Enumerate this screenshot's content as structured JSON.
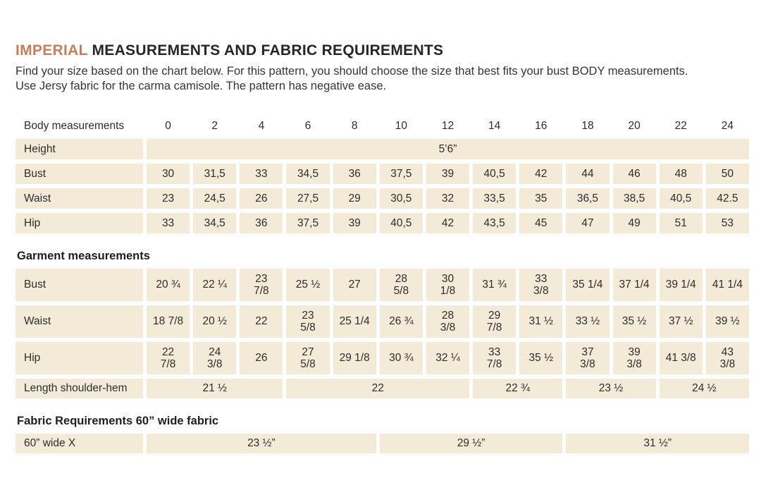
{
  "title": {
    "accent": "IMPERIAL",
    "rest": " MEASUREMENTS AND FABRIC REQUIREMENTS"
  },
  "subtitle": {
    "line1": "Find your size based on the chart below. For this pattern, you should choose the size that best fits your bust BODY measurements.",
    "line2": "Use Jersy fabric for the carma camisole. The pattern has negative ease."
  },
  "colors": {
    "accent": "#c67f5b",
    "cell_background": "#f3ead8",
    "text": "#2d2d2d"
  },
  "table": {
    "header_label": "Body measurements",
    "sizes": [
      "0",
      "2",
      "4",
      "6",
      "8",
      "10",
      "12",
      "14",
      "16",
      "18",
      "20",
      "22",
      "24"
    ],
    "height": {
      "label": "Height",
      "value": "5’6”"
    },
    "body_rows": [
      {
        "label": "Bust",
        "values": [
          "30",
          "31,5",
          "33",
          "34,5",
          "36",
          "37,5",
          "39",
          "40,5",
          "42",
          "44",
          "46",
          "48",
          "50"
        ]
      },
      {
        "label": "Waist",
        "values": [
          "23",
          "24,5",
          "26",
          "27,5",
          "29",
          "30,5",
          "32",
          "33,5",
          "35",
          "36,5",
          "38,5",
          "40,5",
          "42.5"
        ]
      },
      {
        "label": "Hip",
        "values": [
          "33",
          "34,5",
          "36",
          "37,5",
          "39",
          "40,5",
          "42",
          "43,5",
          "45",
          "47",
          "49",
          "51",
          "53"
        ]
      }
    ],
    "garment_section_label": "Garment measurements",
    "garment_rows": [
      {
        "label": "Bust",
        "values": [
          "20 ¾",
          "22 ¼",
          "23\n7/8",
          "25 ½",
          "27",
          "28\n5/8",
          "30\n1/8",
          "31 ¾",
          "33\n3/8",
          "35 1/4",
          "37 1/4",
          "39 1/4",
          "41 1/4"
        ]
      },
      {
        "label": "Waist",
        "values": [
          "18 7/8",
          "20 ½",
          "22",
          "23\n5/8",
          "25 1/4",
          "26 ¾",
          "28\n3/8",
          "29\n7/8",
          "31 ½",
          "33 ½",
          "35 ½",
          "37 ½",
          "39 ½"
        ]
      },
      {
        "label": "Hip",
        "values": [
          "22\n7/8",
          "24\n3/8",
          "26",
          "27\n5/8",
          "29 1/8",
          "30 ¾",
          "32 ¼",
          "33\n7/8",
          "35 ½",
          "37\n3/8",
          "39\n3/8",
          "41 3/8",
          "43\n3/8"
        ]
      }
    ],
    "length_row": {
      "label": "Length shoulder-hem",
      "cells": [
        {
          "value": "21 ½",
          "span": 3
        },
        {
          "value": "22",
          "span": 4
        },
        {
          "value": "22 ¾",
          "span": 2
        },
        {
          "value": "23 ½",
          "span": 2
        },
        {
          "value": "24 ½",
          "span": 2
        }
      ]
    },
    "fabric_section_label": "Fabric Requirements 60” wide fabric",
    "fabric_row": {
      "label": "60” wide X",
      "cells": [
        {
          "value": "23 ½”",
          "span": 5
        },
        {
          "value": "29 ½”",
          "span": 4
        },
        {
          "value": "31 ½”",
          "span": 4
        }
      ]
    }
  }
}
